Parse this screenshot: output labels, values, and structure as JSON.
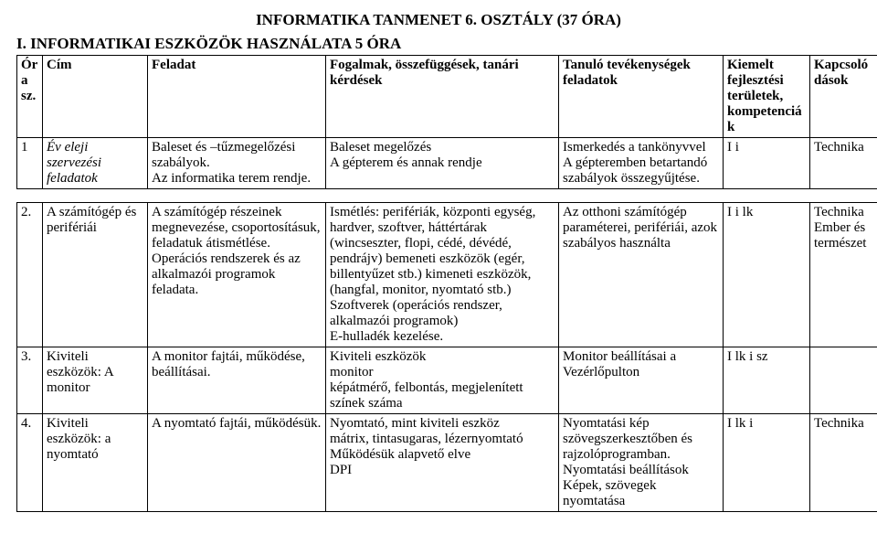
{
  "title": "INFORMATIKA TANMENET 6. OSZTÁLY (37 ÓRA)",
  "section_heading": "I. INFORMATIKAI ESZKÖZÖK HASZNÁLATA 5 ÓRA",
  "columns": {
    "num": "Ór a sz.",
    "cim": "Cím",
    "feladat": "Feladat",
    "fogalmak": "Fogalmak, összefüggések, tanári kérdések",
    "tanulo": "Tanuló tevékenységek feladatok",
    "kiemelt": "Kiemelt fejlesztési területek, kompetenciák",
    "kapcs": "Kapcsoló dások"
  },
  "rows": [
    {
      "num": "1",
      "cim": "Év eleji szervezési feladatok",
      "cim_italic": true,
      "feladat": "Baleset és –tűzmegelőzési szabályok.\nAz informatika terem rendje.",
      "fogalmak": "Baleset megelőzés\nA gépterem és annak rendje",
      "tanulo": "Ismerkedés a tankönyvvel\nA gépteremben betartandó szabályok összegyűjtése.",
      "kiemelt": "I i",
      "kapcs": "Technika"
    },
    {
      "num": "2.",
      "cim": "A számítógép és perifériái",
      "feladat": "A számítógép részeinek megnevezése, csoportosításuk, feladatuk átismétlése.\nOperációs rendszerek és az alkalmazói programok feladata.",
      "fogalmak": "Ismétlés: perifériák, központi egység, hardver, szoftver, háttértárak (wincseszter, flopi, cédé, dévédé, pendrájv) bemeneti eszközök (egér, billentyűzet stb.) kimeneti eszközök, (hangfal, monitor, nyomtató stb.)\nSzoftverek (operációs rendszer, alkalmazói programok)\nE-hulladék kezelése.",
      "tanulo": "Az otthoni számítógép paraméterei, perifériái, azok szabályos használta",
      "kiemelt": "I i lk",
      "kapcs": "Technika Ember és természet"
    },
    {
      "num": "3.",
      "cim": "Kiviteli eszközök: A monitor",
      "feladat": "A monitor fajtái, működése, beállításai.",
      "fogalmak": "Kiviteli eszközök\nmonitor\nképátmérő, felbontás, megjelenített színek száma",
      "tanulo": "Monitor beállításai a Vezérlőpulton",
      "kiemelt": "I lk i sz",
      "kapcs": ""
    },
    {
      "num": "4.",
      "cim": "Kiviteli eszközök: a nyomtató",
      "feladat": "A nyomtató fajtái, működésük.",
      "fogalmak": "Nyomtató, mint kiviteli eszköz\nmátrix, tintasugaras, lézernyomtató\nMűködésük alapvető elve\nDPI",
      "tanulo": "Nyomtatási kép szövegszerkesztőben és rajzolóprogramban.\nNyomtatási beállítások\nKépek, szövegek nyomtatása",
      "kiemelt": "I lk i",
      "kapcs": "Technika"
    }
  ]
}
